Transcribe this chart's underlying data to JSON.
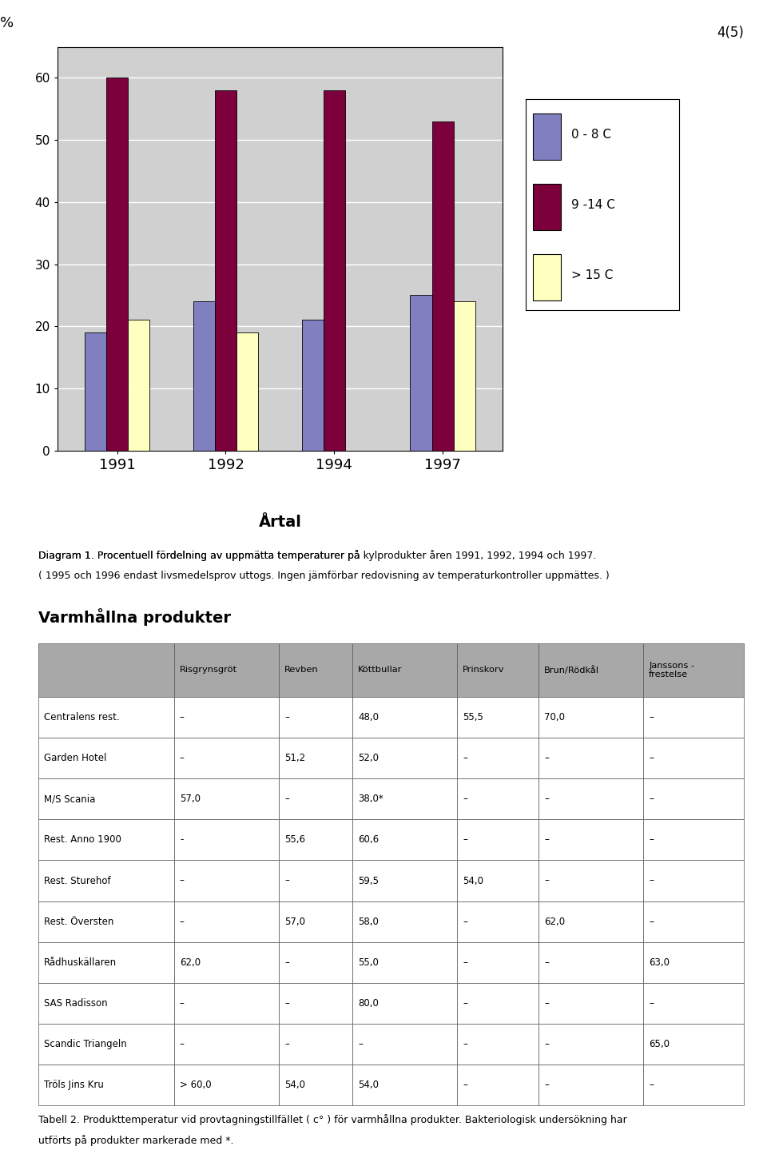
{
  "page_number": "4(5)",
  "chart": {
    "years": [
      1991,
      1992,
      1994,
      1997
    ],
    "series": [
      {
        "label": "0 - 8 C",
        "color": "#8080c0",
        "values": [
          19,
          24,
          21,
          25
        ]
      },
      {
        "label": "9 -14 C",
        "color": "#7b003b",
        "values": [
          60,
          58,
          58,
          53
        ]
      },
      {
        "label": "> 15 C",
        "color": "#ffffc0",
        "values": [
          21,
          19,
          0,
          24
        ]
      }
    ],
    "ylabel": "%",
    "xlabel": "Årtal",
    "ylim": [
      0,
      65
    ],
    "yticks": [
      0,
      10,
      20,
      30,
      40,
      50,
      60
    ],
    "bg_color": "#d0d0d0",
    "bar_width": 0.2
  },
  "diagram_caption_normal1": "Diagram 1. Procentuell fördelning av uppmätta temperaturer på ",
  "diagram_caption_italic": "kylprodukter",
  "diagram_caption_normal2": " åren 1991, 1992, 1994 och 1997.",
  "diagram_caption_line2": "( 1995 och 1996 endast livsmedelsprov uttogs. Ingen jämförbar redovisning av temperaturkontroller uppmättes. )",
  "section_title": "Varmhållna produkter",
  "table": {
    "col_headers": [
      "Risgrynsgröt",
      "Revben",
      "Köttbullar",
      "Prinskorv",
      "Brun/Rödkål",
      "Janssons -\nfrestelse"
    ],
    "rows": [
      {
        "name": "Centralens rest.",
        "values": [
          "–",
          "–",
          "48,0",
          "55,5",
          "70,0",
          "–"
        ]
      },
      {
        "name": "Garden Hotel",
        "values": [
          "–",
          "51,2",
          "52,0",
          "–",
          "–",
          "–"
        ]
      },
      {
        "name": "M/S Scania",
        "values": [
          "57,0",
          "–",
          "38,0*",
          "–",
          "–",
          "–"
        ]
      },
      {
        "name": "Rest. Anno 1900",
        "values": [
          "-",
          "55,6",
          "60,6",
          "–",
          "–",
          "–"
        ]
      },
      {
        "name": "Rest. Sturehof",
        "values": [
          "–",
          "–",
          "59,5",
          "54,0",
          "–",
          "–"
        ]
      },
      {
        "name": "Rest. Översten",
        "values": [
          "–",
          "57,0",
          "58,0",
          "–",
          "62,0",
          "–"
        ]
      },
      {
        "name": "Rådhuskällaren",
        "values": [
          "62,0",
          "–",
          "55,0",
          "–",
          "–",
          "63,0"
        ]
      },
      {
        "name": "SAS Radisson",
        "values": [
          "–",
          "–",
          "80,0",
          "–",
          "–",
          "–"
        ]
      },
      {
        "name": "Scandic Triangeln",
        "values": [
          "–",
          "–",
          "–",
          "–",
          "–",
          "65,0"
        ]
      },
      {
        "name": "Tröls Jins Kru",
        "values": [
          "> 60,0",
          "54,0",
          "54,0",
          "–",
          "–",
          "–"
        ]
      }
    ],
    "header_bg": "#a8a8a8",
    "border_color": "#555555"
  },
  "table2_caption_normal1": "Tabell 2. Produkttemperatur vid provtagningstillfället ( c° ) för ",
  "table2_caption_italic": "varmhållna",
  "table2_caption_normal2": " produkter. Bakteriologisk undersökning har",
  "table2_caption_line2": "utförts på produkter markerade med *."
}
